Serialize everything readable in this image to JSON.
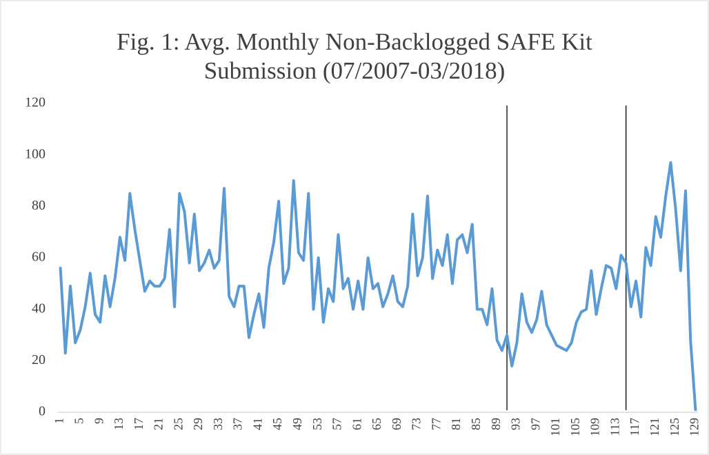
{
  "chart_data": {
    "type": "line",
    "title": "Fig. 1: Avg. Monthly Non-Backlogged SAFE Kit Submission (07/2007-03/2018)",
    "x": [
      1,
      2,
      3,
      4,
      5,
      6,
      7,
      8,
      9,
      10,
      11,
      12,
      13,
      14,
      15,
      16,
      17,
      18,
      19,
      20,
      21,
      22,
      23,
      24,
      25,
      26,
      27,
      28,
      29,
      30,
      31,
      32,
      33,
      34,
      35,
      36,
      37,
      38,
      39,
      40,
      41,
      42,
      43,
      44,
      45,
      46,
      47,
      48,
      49,
      50,
      51,
      52,
      53,
      54,
      55,
      56,
      57,
      58,
      59,
      60,
      61,
      62,
      63,
      64,
      65,
      66,
      67,
      68,
      69,
      70,
      71,
      72,
      73,
      74,
      75,
      76,
      77,
      78,
      79,
      80,
      81,
      82,
      83,
      84,
      85,
      86,
      87,
      88,
      89,
      90,
      91,
      92,
      93,
      94,
      95,
      96,
      97,
      98,
      99,
      100,
      101,
      102,
      103,
      104,
      105,
      106,
      107,
      108,
      109,
      110,
      111,
      112,
      113,
      114,
      115,
      116,
      117,
      118,
      119,
      120,
      121,
      122,
      123,
      124,
      125,
      126,
      127,
      128,
      129
    ],
    "series": [
      {
        "color": "#5b9bd5",
        "values": [
          56,
          23,
          49,
          27,
          32,
          41,
          54,
          38,
          35,
          53,
          41,
          52,
          68,
          59,
          85,
          71,
          59,
          47,
          51,
          49,
          49,
          52,
          71,
          41,
          85,
          78,
          58,
          77,
          55,
          58,
          63,
          56,
          59,
          87,
          45,
          41,
          49,
          49,
          29,
          38,
          46,
          33,
          56,
          66,
          82,
          50,
          56,
          90,
          62,
          59,
          85,
          40,
          60,
          35,
          48,
          43,
          69,
          48,
          52,
          40,
          51,
          40,
          60,
          48,
          50,
          41,
          46,
          53,
          43,
          41,
          49,
          77,
          53,
          60,
          84,
          52,
          63,
          57,
          69,
          50,
          67,
          69,
          62,
          73,
          40,
          40,
          34,
          48,
          28,
          24,
          30,
          18,
          27,
          46,
          35,
          31,
          36,
          47,
          34,
          30,
          26,
          25,
          24,
          27,
          35,
          39,
          40,
          55,
          38,
          48,
          57,
          56,
          48,
          61,
          58,
          41,
          51,
          37,
          64,
          57,
          76,
          68,
          84,
          97,
          79,
          55,
          86,
          28,
          1
        ]
      }
    ],
    "xlim": [
      0.5,
      129.5
    ],
    "xticks": [
      1,
      5,
      9,
      13,
      17,
      21,
      25,
      29,
      33,
      37,
      41,
      45,
      49,
      53,
      57,
      61,
      65,
      69,
      73,
      77,
      81,
      85,
      89,
      93,
      97,
      101,
      105,
      109,
      113,
      117,
      121,
      125,
      129
    ],
    "ylim": [
      0,
      120
    ],
    "yticks": [
      0,
      20,
      40,
      60,
      80,
      100,
      120
    ],
    "grid": false,
    "reference_lines": [
      {
        "x": 91,
        "color": "#000000"
      },
      {
        "x": 115,
        "color": "#000000"
      }
    ]
  }
}
